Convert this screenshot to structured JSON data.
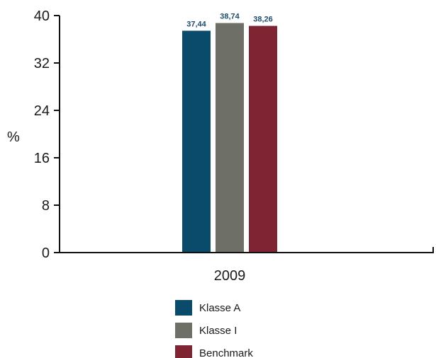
{
  "chart_data": {
    "type": "bar",
    "categories": [
      "2009"
    ],
    "series": [
      {
        "name": "Klasse A",
        "values": [
          37.44
        ],
        "label": "37,44",
        "color": "#0a4a6b"
      },
      {
        "name": "Klasse I",
        "values": [
          38.74
        ],
        "label": "38,74",
        "color": "#6e6f66"
      },
      {
        "name": "Benchmark",
        "values": [
          38.26
        ],
        "label": "38,26",
        "color": "#7f2433"
      }
    ],
    "ylabel": "%",
    "ylim": [
      0,
      40
    ],
    "yticks": [
      0,
      8,
      16,
      24,
      32,
      40
    ],
    "grid": false,
    "legend_position": "bottom"
  }
}
